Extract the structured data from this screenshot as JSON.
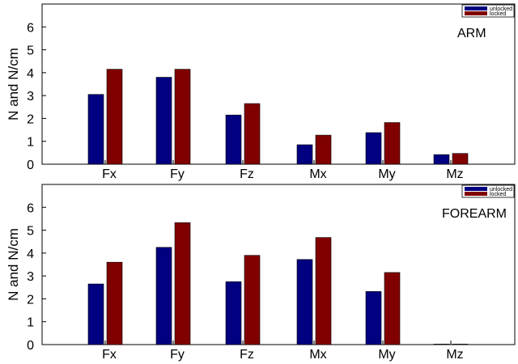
{
  "chart_data": [
    {
      "type": "bar",
      "title": "ARM",
      "ylabel": "N and N/cm",
      "categories": [
        "Fx",
        "Fy",
        "Fz",
        "Mx",
        "My",
        "Mz"
      ],
      "ylim": [
        0,
        7
      ],
      "yticks": [
        0,
        1,
        2,
        3,
        4,
        5,
        6
      ],
      "grid": false,
      "legend_position": "top-right",
      "series": [
        {
          "name": "unlocked",
          "color": "#000080",
          "values": [
            3.05,
            3.8,
            2.15,
            0.85,
            1.38,
            0.42
          ]
        },
        {
          "name": "locked",
          "color": "#800000",
          "values": [
            4.15,
            4.15,
            2.65,
            1.27,
            1.82,
            0.47
          ]
        }
      ]
    },
    {
      "type": "bar",
      "title": "FOREARM",
      "ylabel": "N and N/cm",
      "categories": [
        "Fx",
        "Fy",
        "Fz",
        "Mx",
        "My",
        "Mz"
      ],
      "ylim": [
        0,
        7
      ],
      "yticks": [
        0,
        1,
        2,
        3,
        4,
        5,
        6
      ],
      "grid": false,
      "legend_position": "top-right",
      "series": [
        {
          "name": "unlocked",
          "color": "#000080",
          "values": [
            2.65,
            4.25,
            2.75,
            3.72,
            2.32,
            0.02
          ]
        },
        {
          "name": "locked",
          "color": "#800000",
          "values": [
            3.6,
            5.33,
            3.9,
            4.68,
            3.15,
            0.02
          ]
        }
      ]
    }
  ]
}
